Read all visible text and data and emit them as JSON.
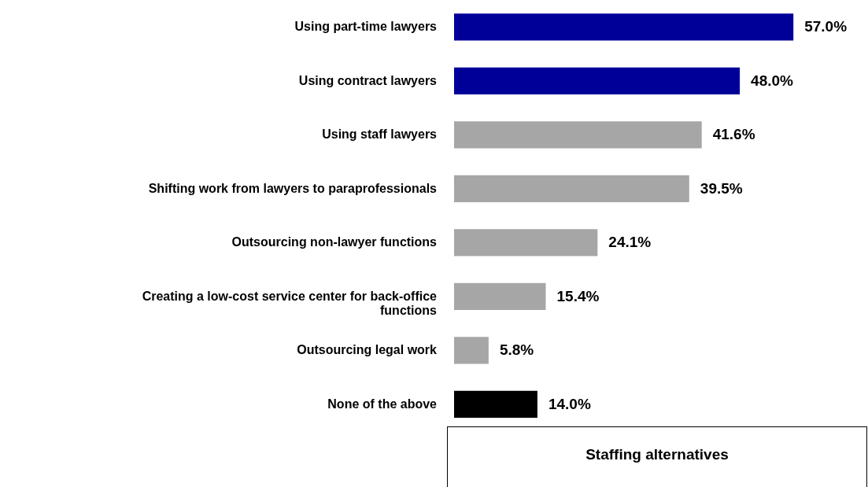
{
  "chart_data": {
    "type": "bar",
    "orientation": "horizontal",
    "data_labels": true,
    "categories": [
      "Using part-time lawyers",
      "Using contract lawyers",
      "Using staff lawyers",
      "Shifting work from lawyers to paraprofessionals",
      "Outsourcing non-lawyer functions",
      "Creating a low-cost service center for back-office functions",
      "Outsourcing legal work",
      "None of the above"
    ],
    "values": [
      57.0,
      48.0,
      41.6,
      39.5,
      24.1,
      15.4,
      5.8,
      14.0
    ],
    "colors": [
      "#000099",
      "#000099",
      "#a6a6a6",
      "#a6a6a6",
      "#a6a6a6",
      "#a6a6a6",
      "#a6a6a6",
      "#000000"
    ],
    "value_labels": [
      "57.0%",
      "48.0%",
      "41.6%",
      "39.5%",
      "24.1%",
      "15.4%",
      "5.8%",
      "14.0%"
    ],
    "annotations": [
      "Staffing alternatives"
    ]
  }
}
